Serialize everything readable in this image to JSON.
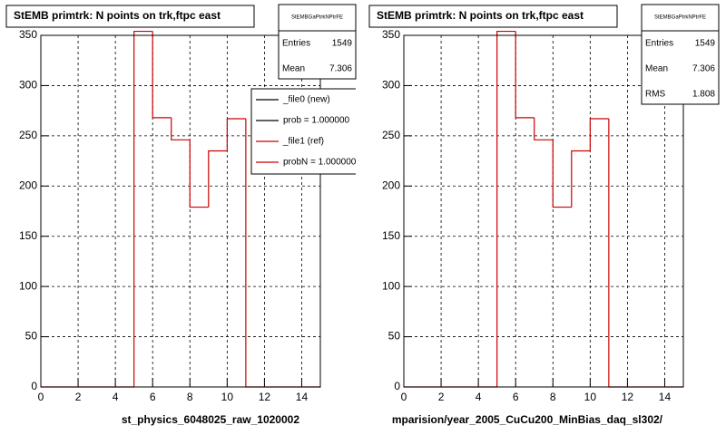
{
  "chart_data": [
    {
      "type": "histogram",
      "title": "StEMB primtrk: N points on trk,ftpc east",
      "x_label": "st_physics_6048025_raw_1020002",
      "bins": [
        0,
        1,
        2,
        3,
        4,
        5,
        6,
        7,
        8,
        9,
        10,
        11,
        12,
        13,
        14,
        15
      ],
      "series": [
        {
          "name": "_file1 (ref)",
          "color": "#cc0000",
          "values": [
            0,
            0,
            0,
            0,
            0,
            354,
            268,
            246,
            179,
            235,
            267,
            0,
            0,
            0,
            0
          ]
        }
      ],
      "xlim": [
        0,
        15
      ],
      "xticks": [
        0,
        2,
        4,
        6,
        8,
        10,
        12,
        14
      ],
      "ylim": [
        0,
        350
      ],
      "yticks": [
        0,
        50,
        100,
        150,
        200,
        250,
        300,
        350
      ],
      "grid": true,
      "stats": {
        "title": "StEMBGaPtrkNPtrFE",
        "rows": [
          {
            "name": "Entries",
            "value": 1549
          },
          {
            "name": "Mean",
            "value": 7.306
          }
        ]
      },
      "legend": [
        {
          "label": "_file0 (new)",
          "color": "#000000"
        },
        {
          "label": "prob = 1.000000",
          "color": "#000000"
        },
        {
          "label": "_file1 (ref)",
          "color": "#cc0000"
        },
        {
          "label": "probN = 1.000000",
          "color": "#cc0000"
        }
      ]
    },
    {
      "type": "histogram",
      "title": "StEMB primtrk: N points on trk,ftpc east",
      "x_label": "mparision/year_2005_CuCu200_MinBias_daq_sl302/",
      "bins": [
        0,
        1,
        2,
        3,
        4,
        5,
        6,
        7,
        8,
        9,
        10,
        11,
        12,
        13,
        14,
        15
      ],
      "series": [
        {
          "name": "_file1 (ref)",
          "color": "#cc0000",
          "values": [
            0,
            0,
            0,
            0,
            0,
            354,
            268,
            246,
            179,
            235,
            267,
            0,
            0,
            0,
            0
          ]
        }
      ],
      "xlim": [
        0,
        15
      ],
      "xticks": [
        0,
        2,
        4,
        6,
        8,
        10,
        12,
        14
      ],
      "ylim": [
        0,
        350
      ],
      "yticks": [
        0,
        50,
        100,
        150,
        200,
        250,
        300,
        350
      ],
      "grid": true,
      "stats": {
        "title": "StEMBGaPtrkNPtrFE",
        "rows": [
          {
            "name": "Entries",
            "value": 1549
          },
          {
            "name": "Mean",
            "value": 7.306
          },
          {
            "name": "RMS",
            "value": 1.808
          }
        ]
      }
    }
  ]
}
